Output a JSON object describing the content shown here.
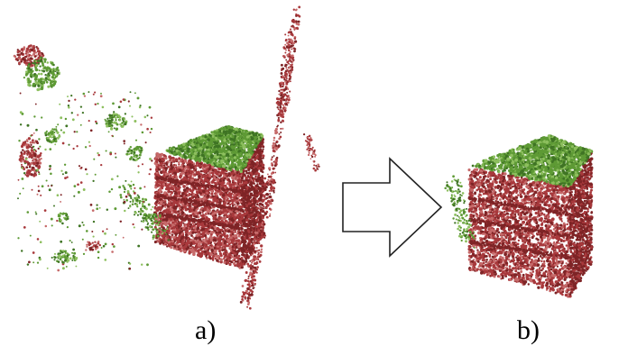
{
  "panels": [
    {
      "id": "a",
      "caption": "a)",
      "description_state": "noisy"
    },
    {
      "id": "b",
      "caption": "b)",
      "description_state": "filtered"
    }
  ],
  "colors": {
    "red_points": "#a8393c",
    "red_dark": "#7e2426",
    "red_light": "#c66a6a",
    "green_points": "#5e9a35",
    "green_dark": "#3f7424",
    "green_light": "#8dbf5e",
    "arrow_stroke": "#222222",
    "arrow_fill": "#ffffff"
  },
  "icons": {
    "arrow": "right-arrow-icon"
  }
}
